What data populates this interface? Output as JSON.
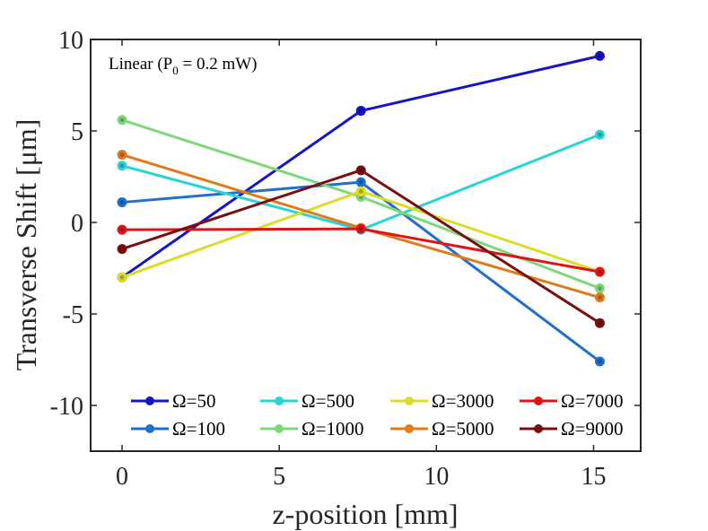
{
  "chart_data": {
    "type": "line",
    "title": "",
    "xlabel": "z-position [mm]",
    "ylabel": "Transverse Shift [μm]",
    "xlim": [
      -1,
      16.5
    ],
    "ylim": [
      -12.5,
      10
    ],
    "xticks": [
      0,
      5,
      10,
      15
    ],
    "yticks": [
      10,
      5,
      0,
      -5,
      -10
    ],
    "xtick_labels": [
      "0",
      "5",
      "10",
      "15"
    ],
    "ytick_labels": [
      "10",
      "5",
      "0",
      "-5",
      "-10"
    ],
    "grid": false,
    "legend_position": "bottom",
    "annotation": {
      "text_before": "Linear (P",
      "subscript": "0",
      "text_after": " = 0.2 mW)"
    },
    "x": [
      0,
      7.6,
      15.2
    ],
    "series": [
      {
        "name": "Ω=50",
        "values": [
          -3.0,
          6.1,
          9.1
        ],
        "color": "#1414c8"
      },
      {
        "name": "Ω=100",
        "values": [
          1.1,
          2.2,
          -7.6
        ],
        "color": "#1f6fd0"
      },
      {
        "name": "Ω=500",
        "values": [
          3.1,
          -0.4,
          4.8
        ],
        "color": "#2bd3d3"
      },
      {
        "name": "Ω=1000",
        "values": [
          5.6,
          1.4,
          -3.6
        ],
        "color": "#7cd87c"
      },
      {
        "name": "Ω=3000",
        "values": [
          -3.0,
          1.7,
          -2.7
        ],
        "color": "#dcdc28"
      },
      {
        "name": "Ω=5000",
        "values": [
          3.7,
          -0.3,
          -4.1
        ],
        "color": "#e07a1a"
      },
      {
        "name": "Ω=7000",
        "values": [
          -0.4,
          -0.35,
          -2.7
        ],
        "color": "#e01414"
      },
      {
        "name": "Ω=9000",
        "values": [
          -1.45,
          2.85,
          -5.5
        ],
        "color": "#781010"
      }
    ]
  }
}
